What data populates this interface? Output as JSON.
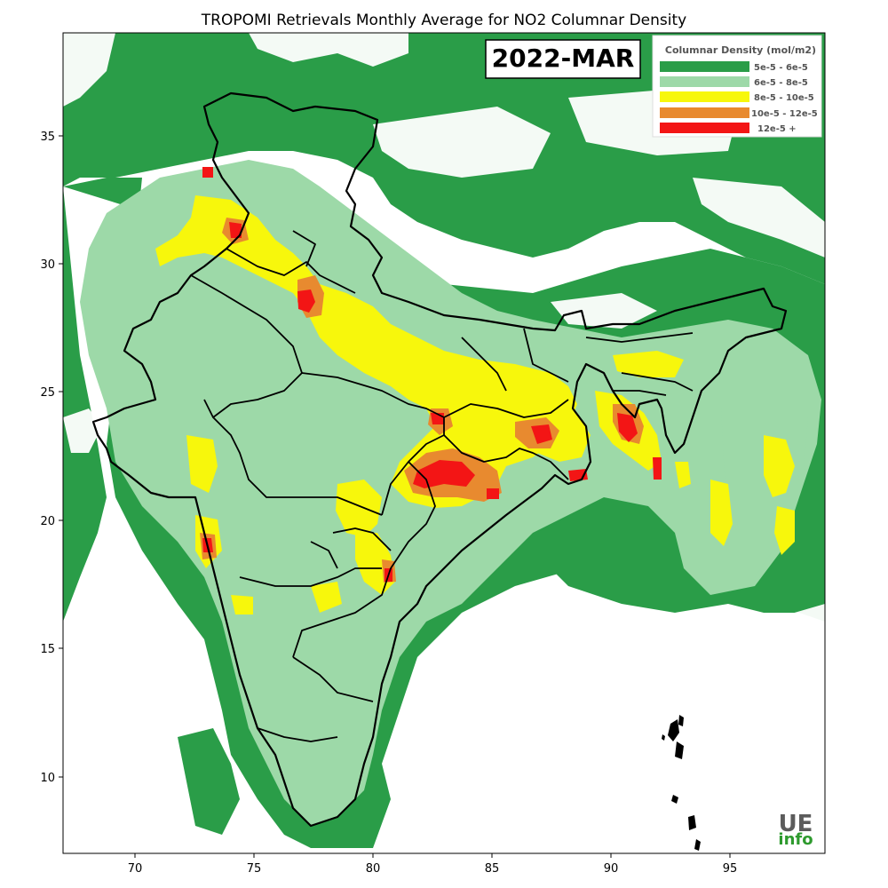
{
  "title": "TROPOMI Retrievals Monthly Average for NO2 Columnar Density",
  "period_label": "2022-MAR",
  "legend": {
    "title": "Columnar Density (mol/m2)",
    "items": [
      {
        "label": "5e-5 - 6e-5",
        "color": "#2a9d48"
      },
      {
        "label": "6e-5 - 8e-5",
        "color": "#9dd9a8"
      },
      {
        "label": "8e-5 - 10e-5",
        "color": "#f7f70c"
      },
      {
        "label": "10e-5 - 12e-5",
        "color": "#e88a2f"
      },
      {
        "label": "12e-5 +",
        "color": "#f31515"
      }
    ]
  },
  "axes": {
    "x_ticks": [
      "70",
      "75",
      "80",
      "85",
      "90",
      "95"
    ],
    "y_ticks": [
      "35",
      "30",
      "25",
      "20",
      "15",
      "10"
    ]
  },
  "logo": {
    "top": "UE",
    "bottom": "info"
  }
}
